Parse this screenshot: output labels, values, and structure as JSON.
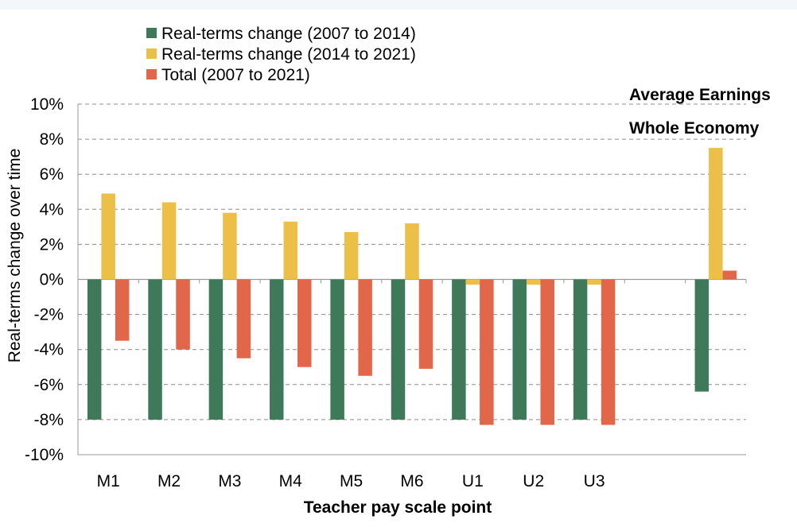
{
  "chart_data": {
    "type": "bar",
    "title": "",
    "xlabel": "Teacher pay scale point",
    "ylabel": "Real-terms change over time",
    "ylim": [
      -10,
      10
    ],
    "yticks": [
      -10,
      -8,
      -6,
      -4,
      -2,
      0,
      2,
      4,
      6,
      8,
      10
    ],
    "ytick_labels": [
      "-10%",
      "-8%",
      "-6%",
      "-4%",
      "-2%",
      "0%",
      "2%",
      "4%",
      "6%",
      "8%",
      "10%"
    ],
    "categories": [
      "M1",
      "M2",
      "M3",
      "M4",
      "M5",
      "M6",
      "U1",
      "U2",
      "U3",
      "",
      "Average Earnings Whole Economy"
    ],
    "tick_labels": [
      "M1",
      "M2",
      "M3",
      "M4",
      "M5",
      "M6",
      "U1",
      "U2",
      "U3",
      "",
      ""
    ],
    "annotation_lines": [
      "Average Earnings",
      "Whole Economy"
    ],
    "grid": "horizontal dashed",
    "legend_position": "top-left",
    "series": [
      {
        "name": "Real-terms change (2007 to 2014)",
        "color": "#3e7a5a",
        "values": [
          -8.0,
          -8.0,
          -8.0,
          -8.0,
          -8.0,
          -8.0,
          -8.0,
          -8.0,
          -8.0,
          null,
          -6.4
        ]
      },
      {
        "name": "Real-terms change (2014 to 2021)",
        "color": "#ecbf47",
        "values": [
          4.9,
          4.4,
          3.8,
          3.3,
          2.7,
          3.2,
          -0.3,
          -0.3,
          -0.3,
          null,
          7.5
        ]
      },
      {
        "name": "Total (2007 to 2021)",
        "color": "#e2664a",
        "values": [
          -3.5,
          -4.0,
          -4.5,
          -5.0,
          -5.5,
          -5.1,
          -8.3,
          -8.3,
          -8.3,
          null,
          0.5
        ]
      }
    ]
  }
}
